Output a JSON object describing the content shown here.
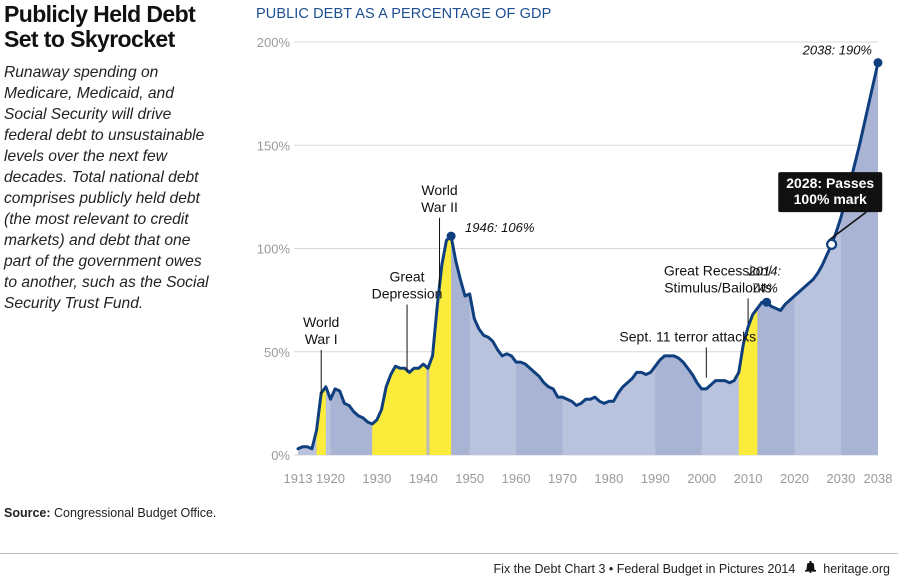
{
  "header": {
    "title_lines": [
      "Publicly Held Debt",
      "Set to Skyrocket"
    ],
    "description_lines": [
      "Runaway spending on",
      "Medicare, Medicaid, and",
      "Social Security will drive",
      "federal debt to unsustainable",
      "levels over the next few",
      "decades. Total national debt",
      "comprises publicly held debt",
      "(the most relevant to credit",
      "markets) and debt that one",
      "part of the government owes",
      "to another, such as the Social",
      "Security Trust Fund."
    ]
  },
  "footer": {
    "source_label": "Source:",
    "source_text": "Congressional Budget Office.",
    "credit": "Fix the Debt Chart 3  •  Federal Budget in Pictures 2014",
    "bell_icon": "liberty-bell-icon",
    "site": "heritage.org"
  },
  "chart_data": {
    "type": "area",
    "title": "PUBLIC DEBT AS A PERCENTAGE OF GDP",
    "xlabel": "",
    "ylabel": "",
    "xlim": [
      1913,
      2038
    ],
    "ylim": [
      0,
      200
    ],
    "x_ticks": [
      1913,
      1920,
      1930,
      1940,
      1950,
      1960,
      1970,
      1980,
      1990,
      2000,
      2010,
      2020,
      2030,
      2038
    ],
    "y_ticks": [
      0,
      50,
      100,
      150,
      200
    ],
    "y_tick_labels": [
      "0%",
      "50%",
      "100%",
      "150%",
      "200%"
    ],
    "grid": true,
    "colors": {
      "line": "#0f3f7f",
      "fill": "#b9c3dd",
      "band": "#a9b3d3",
      "highlight": "#fbec3c",
      "separator": "#bbbbbb",
      "grid": "#d8d8d8",
      "accent": "#1e4f91"
    },
    "series": [
      {
        "x": [
          1913,
          1914,
          1915,
          1916,
          1917,
          1918,
          1919,
          1920,
          1921,
          1922,
          1923,
          1924,
          1925,
          1926,
          1927,
          1928,
          1929,
          1930,
          1931,
          1932,
          1933,
          1934,
          1935,
          1936,
          1937,
          1938,
          1939,
          1940,
          1941,
          1942,
          1943,
          1944,
          1945,
          1946,
          1947,
          1948,
          1949,
          1950,
          1951,
          1952,
          1953,
          1954,
          1955,
          1956,
          1957,
          1958,
          1959,
          1960,
          1961,
          1962,
          1963,
          1964,
          1965,
          1966,
          1967,
          1968,
          1969,
          1970,
          1971,
          1972,
          1973,
          1974,
          1975,
          1976,
          1977,
          1978,
          1979,
          1980,
          1981,
          1982,
          1983,
          1984,
          1985,
          1986,
          1987,
          1988,
          1989,
          1990,
          1991,
          1992,
          1993,
          1994,
          1995,
          1996,
          1997,
          1998,
          1999,
          2000,
          2001,
          2002,
          2003,
          2004,
          2005,
          2006,
          2007,
          2008,
          2009,
          2010,
          2011,
          2012,
          2013,
          2014,
          2015,
          2016,
          2017,
          2018,
          2019,
          2020,
          2021,
          2022,
          2023,
          2024,
          2025,
          2026,
          2027,
          2028,
          2029,
          2030,
          2031,
          2032,
          2033,
          2034,
          2035,
          2036,
          2037,
          2038
        ],
        "y": [
          3,
          4,
          4,
          3,
          12,
          30,
          33,
          27,
          32,
          31,
          25,
          24,
          21,
          19,
          18,
          16,
          15,
          17,
          22,
          33,
          39,
          43,
          42,
          42,
          40,
          42,
          42,
          44,
          42,
          48,
          72,
          92,
          104,
          106,
          94,
          85,
          77,
          78,
          66,
          61,
          58,
          57,
          55,
          51,
          48,
          49,
          48,
          45,
          45,
          44,
          42,
          40,
          38,
          35,
          33,
          32,
          28,
          28,
          27,
          26,
          24,
          25,
          27,
          27,
          28,
          26,
          25,
          26,
          26,
          30,
          33,
          35,
          37,
          40,
          40,
          39,
          40,
          43,
          46,
          48,
          48,
          48,
          47,
          45,
          42,
          39,
          35,
          32,
          32,
          34,
          36,
          36,
          36,
          35,
          36,
          40,
          54,
          62,
          68,
          71,
          74,
          74,
          72,
          71,
          70,
          73,
          75,
          77,
          79,
          81,
          83,
          85,
          88,
          92,
          97,
          102,
          108,
          115,
          123,
          132,
          141,
          150,
          160,
          170,
          180,
          190
        ]
      }
    ],
    "highlighted_periods": [
      {
        "label_lines": [
          "World",
          "War I"
        ],
        "start": 1917,
        "end": 1919,
        "label_x": 1918,
        "label_y": 62
      },
      {
        "label_lines": [
          "Great",
          "Depression"
        ],
        "start": 1929,
        "end": 1941,
        "label_x": 1936.5,
        "label_y": 84
      },
      {
        "label_lines": [
          "World",
          "War II"
        ],
        "start": 1941,
        "end": 1946,
        "label_x": 1943.5,
        "label_y": 126
      }
    ],
    "great_recession": {
      "start": 2008,
      "end": 2012
    },
    "annotations": [
      {
        "text": "1946: 106%",
        "x": 1946,
        "y": 106,
        "label_x": 1949,
        "label_y": 108,
        "marker": true
      },
      {
        "text": "2038: 190%",
        "x": 2038,
        "y": 190,
        "label_x": 2020,
        "label_y": 194,
        "marker": true
      },
      {
        "text_lines": [
          "2014:",
          "74%"
        ],
        "x": 2014,
        "y": 74,
        "label_x": 2013.6,
        "label_y": 87,
        "marker": true
      },
      {
        "text_lines": [
          "Great Recession/",
          "Stimulus/Bailouts"
        ],
        "x": 2010,
        "y": 62,
        "label_x": 2003.5,
        "label_y": 87
      },
      {
        "text": "Sept. 11 terror attacks",
        "x": 2001,
        "y": 36,
        "label_x": 1997,
        "label_y": 55
      }
    ],
    "callout": {
      "text_lines": [
        "2028: Passes",
        "100% mark"
      ],
      "x": 2028,
      "y": 102,
      "box_x": 2016.5,
      "box_y": 137
    }
  }
}
